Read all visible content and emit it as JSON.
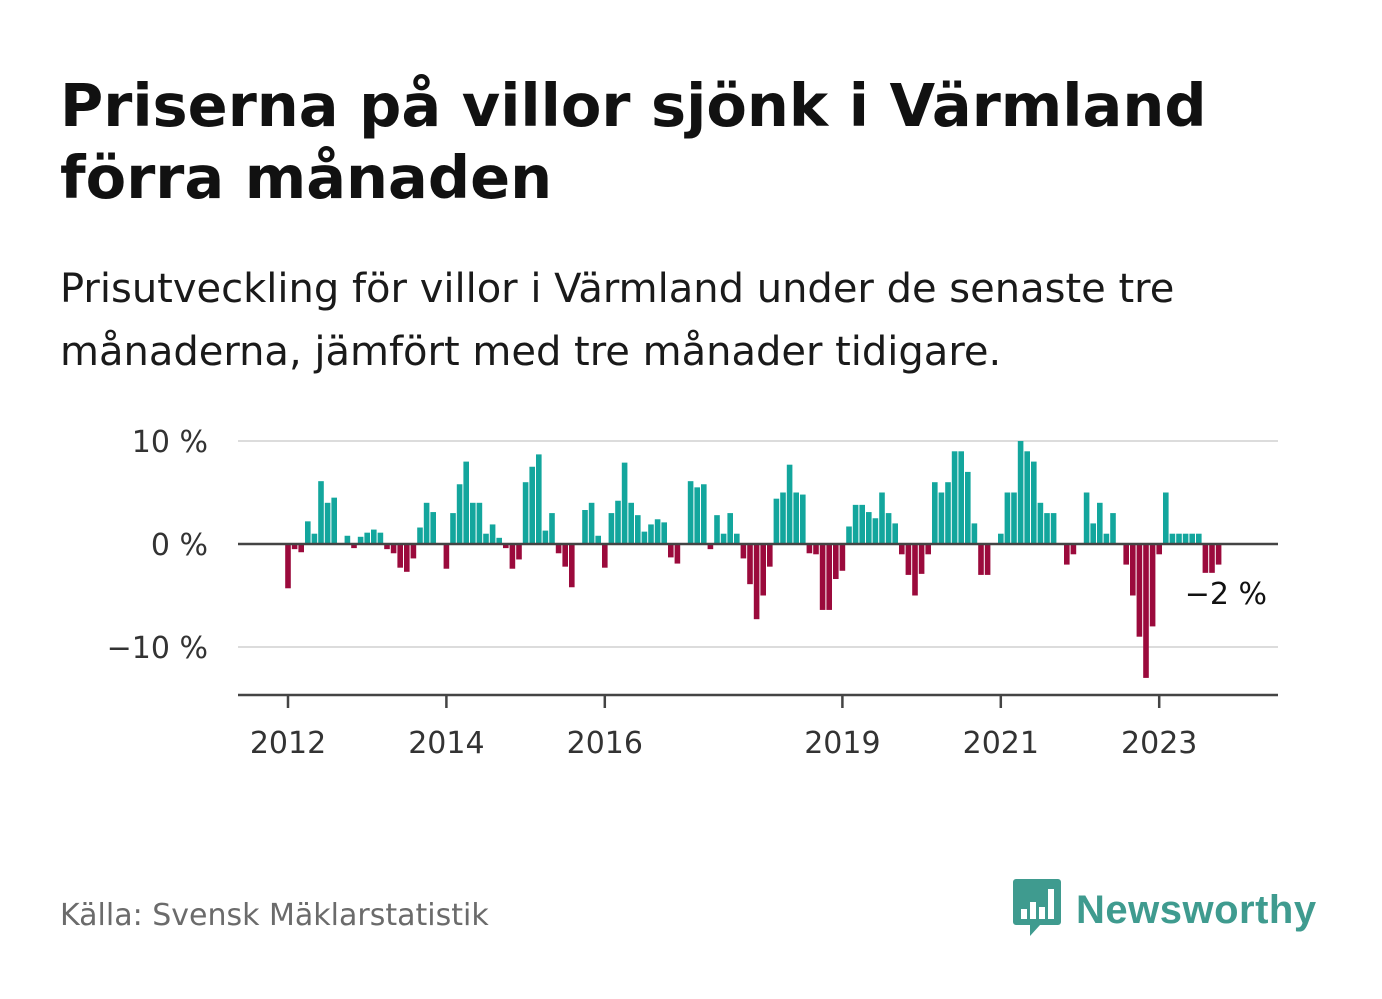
{
  "header": {
    "title": "Priserna på villor sjönk i Värmland förra månaden",
    "subtitle": "Prisutveckling för villor i Värmland under de senaste tre månaderna, jämfört med tre månader tidigare."
  },
  "footer": {
    "source": "Källa: Svensk Mäklarstatistik",
    "brand": "Newsworthy",
    "brand_icon": "bar-chart-speech-bubble-icon"
  },
  "colors": {
    "positive": "#13a69d",
    "negative": "#9b0a3c",
    "brand": "#3f9b8f"
  },
  "chart_data": {
    "type": "bar",
    "unit": "%",
    "start": "2012-01",
    "ylim": [
      -15,
      10
    ],
    "yticks": [
      {
        "value": 10,
        "label": "10 %"
      },
      {
        "value": 0,
        "label": "0 %"
      },
      {
        "value": -10,
        "label": "−10 %"
      }
    ],
    "xticks": [
      "2012",
      "2014",
      "2016",
      "2019",
      "2021",
      "2023"
    ],
    "grid": true,
    "annotation": {
      "label": "−2 %",
      "value": -2
    },
    "values": [
      -4.3,
      -0.5,
      -0.8,
      2.2,
      1.0,
      6.1,
      4.0,
      4.5,
      0.0,
      0.8,
      -0.4,
      0.7,
      1.1,
      1.4,
      1.1,
      -0.5,
      -0.9,
      -2.3,
      -2.7,
      -1.4,
      1.6,
      4.0,
      3.1,
      0.0,
      -2.4,
      3.0,
      5.8,
      8.0,
      4.0,
      4.0,
      1.0,
      1.9,
      0.6,
      -0.4,
      -2.4,
      -1.5,
      6.0,
      7.5,
      8.7,
      1.3,
      3.0,
      -0.9,
      -2.2,
      -4.2,
      0.0,
      3.3,
      4.0,
      0.8,
      -2.3,
      3.0,
      4.2,
      7.9,
      4.0,
      2.8,
      1.2,
      1.9,
      2.4,
      2.1,
      -1.3,
      -1.9,
      0.0,
      6.1,
      5.5,
      5.8,
      -0.5,
      2.8,
      1.0,
      3.0,
      1.0,
      -1.4,
      -3.9,
      -7.3,
      -5.0,
      -2.2,
      4.4,
      5.0,
      7.7,
      5.0,
      4.8,
      -0.9,
      -1.0,
      -6.4,
      -6.4,
      -3.4,
      -2.6,
      1.7,
      3.8,
      3.8,
      3.1,
      2.5,
      5.0,
      3.0,
      2.0,
      -1.0,
      -3.0,
      -5.0,
      -2.9,
      -1.0,
      6.0,
      5.0,
      6.0,
      9.0,
      9.0,
      7.0,
      2.0,
      -3.0,
      -3.0,
      0.0,
      1.0,
      5.0,
      5.0,
      10.0,
      9.0,
      8.0,
      4.0,
      3.0,
      3.0,
      0.0,
      -2.0,
      -1.0,
      0.0,
      5.0,
      2.0,
      4.0,
      1.0,
      3.0,
      0.0,
      -2.0,
      -5.0,
      -9.0,
      -13.0,
      -8.0,
      -1.0,
      5.0,
      1.0,
      1.0,
      1.0,
      1.0,
      1.0,
      -2.8,
      -2.8,
      -2.0
    ]
  }
}
